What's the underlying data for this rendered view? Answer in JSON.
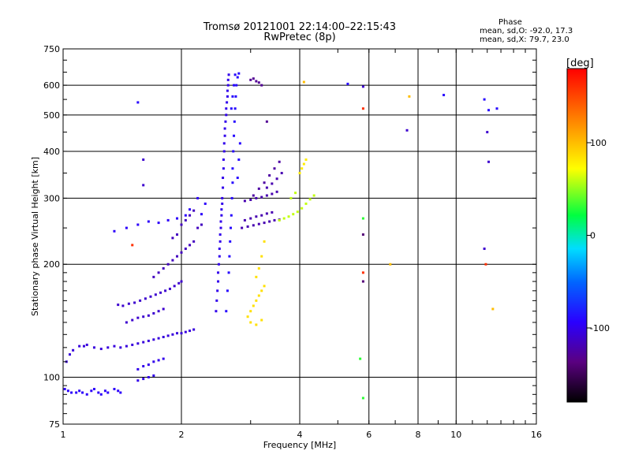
{
  "header": {
    "title": "Tromsø 20121001 22:14:00–22:15:43",
    "subtitle": "RwPretec (8p)"
  },
  "phase_info": {
    "heading": "Phase",
    "line_o": "mean, sd,O: -92.0, 17.3",
    "line_x": "mean, sd,X:  79.7, 23.0"
  },
  "chart_data": {
    "type": "scatter",
    "title": "Tromsø 20121001 22:14:00–22:15:43",
    "subtitle": "RwPretec (8p)",
    "xlabel": "Frequency [MHz]",
    "ylabel": "Stationary phase Virtual Height [km]",
    "x_scale": "log",
    "y_scale": "log",
    "xlim": [
      1,
      16
    ],
    "ylim": [
      75,
      750
    ],
    "x_ticks": [
      1,
      2,
      4,
      6,
      8,
      10,
      16
    ],
    "x_tick_labels": [
      "1",
      "2",
      "4",
      "6",
      "8",
      "10",
      "16"
    ],
    "y_ticks": [
      75,
      100,
      200,
      300,
      400,
      500,
      600,
      750
    ],
    "y_tick_labels": [
      "75",
      "100",
      "200",
      "300",
      "400",
      "500",
      "600",
      "750"
    ],
    "grid": true,
    "colorbar": {
      "label": "[deg]",
      "range": [
        -180,
        180
      ],
      "ticks": [
        100,
        0,
        -100
      ],
      "tick_labels": [
        "100",
        "0",
        "-100"
      ]
    },
    "clusters": [
      {
        "phase": -95,
        "points": [
          [
            1.01,
            93
          ],
          [
            1.03,
            92
          ],
          [
            1.05,
            91
          ],
          [
            1.08,
            91
          ],
          [
            1.1,
            92
          ],
          [
            1.12,
            91
          ],
          [
            1.15,
            90
          ],
          [
            1.18,
            92
          ],
          [
            1.2,
            93
          ],
          [
            1.23,
            91
          ],
          [
            1.25,
            90
          ],
          [
            1.28,
            92
          ],
          [
            1.3,
            91
          ],
          [
            1.35,
            93
          ],
          [
            1.38,
            92
          ],
          [
            1.4,
            91
          ]
        ]
      },
      {
        "phase": -105,
        "points": [
          [
            1.02,
            110
          ],
          [
            1.04,
            115
          ],
          [
            1.06,
            118
          ],
          [
            1.1,
            121
          ],
          [
            1.13,
            121
          ],
          [
            1.15,
            122
          ],
          [
            1.2,
            120
          ],
          [
            1.25,
            119
          ],
          [
            1.3,
            120
          ],
          [
            1.35,
            121
          ],
          [
            1.4,
            120
          ],
          [
            1.45,
            121
          ],
          [
            1.5,
            122
          ],
          [
            1.55,
            123
          ],
          [
            1.6,
            124
          ],
          [
            1.65,
            125
          ],
          [
            1.7,
            126
          ],
          [
            1.75,
            127
          ],
          [
            1.8,
            128
          ],
          [
            1.85,
            129
          ],
          [
            1.9,
            130
          ],
          [
            1.95,
            131
          ],
          [
            2.0,
            131
          ],
          [
            2.05,
            132
          ],
          [
            2.1,
            133
          ],
          [
            2.15,
            134
          ]
        ]
      },
      {
        "phase": -100,
        "points": [
          [
            1.55,
            105
          ],
          [
            1.6,
            107
          ],
          [
            1.65,
            108
          ],
          [
            1.7,
            110
          ],
          [
            1.75,
            111
          ],
          [
            1.8,
            112
          ],
          [
            1.55,
            98
          ],
          [
            1.6,
            99
          ],
          [
            1.65,
            100
          ],
          [
            1.7,
            101
          ]
        ]
      },
      {
        "phase": -110,
        "points": [
          [
            1.38,
            156
          ],
          [
            1.42,
            155
          ],
          [
            1.47,
            157
          ],
          [
            1.52,
            158
          ],
          [
            1.57,
            160
          ],
          [
            1.62,
            162
          ],
          [
            1.67,
            164
          ],
          [
            1.72,
            166
          ],
          [
            1.77,
            168
          ],
          [
            1.82,
            170
          ],
          [
            1.87,
            172
          ],
          [
            1.92,
            175
          ],
          [
            1.97,
            178
          ],
          [
            2.0,
            180
          ],
          [
            1.45,
            140
          ],
          [
            1.5,
            142
          ],
          [
            1.55,
            144
          ],
          [
            1.6,
            145
          ],
          [
            1.65,
            146
          ],
          [
            1.7,
            148
          ],
          [
            1.75,
            150
          ],
          [
            1.8,
            152
          ]
        ]
      },
      {
        "phase": -115,
        "points": [
          [
            1.7,
            185
          ],
          [
            1.75,
            190
          ],
          [
            1.8,
            195
          ],
          [
            1.85,
            200
          ],
          [
            1.9,
            205
          ],
          [
            1.95,
            210
          ],
          [
            2.0,
            215
          ],
          [
            2.05,
            220
          ],
          [
            2.1,
            225
          ],
          [
            2.15,
            230
          ],
          [
            2.0,
            255
          ],
          [
            2.05,
            262
          ],
          [
            2.1,
            270
          ],
          [
            2.15,
            278
          ],
          [
            1.95,
            240
          ],
          [
            1.9,
            235
          ],
          [
            2.2,
            250
          ],
          [
            2.25,
            255
          ]
        ]
      },
      {
        "phase": -95,
        "points": [
          [
            1.35,
            245
          ],
          [
            1.45,
            250
          ],
          [
            1.55,
            255
          ],
          [
            1.65,
            260
          ],
          [
            1.75,
            258
          ],
          [
            1.85,
            262
          ],
          [
            1.95,
            265
          ],
          [
            2.05,
            270
          ],
          [
            2.1,
            280
          ],
          [
            2.2,
            300
          ],
          [
            2.3,
            290
          ],
          [
            2.25,
            272
          ]
        ]
      },
      {
        "phase": -100,
        "points": [
          [
            2.45,
            150
          ],
          [
            2.46,
            160
          ],
          [
            2.47,
            170
          ],
          [
            2.48,
            180
          ],
          [
            2.48,
            190
          ],
          [
            2.49,
            200
          ],
          [
            2.5,
            210
          ],
          [
            2.5,
            220
          ],
          [
            2.51,
            230
          ],
          [
            2.51,
            240
          ],
          [
            2.52,
            250
          ],
          [
            2.52,
            260
          ],
          [
            2.53,
            270
          ],
          [
            2.53,
            280
          ],
          [
            2.54,
            290
          ],
          [
            2.54,
            300
          ],
          [
            2.55,
            320
          ],
          [
            2.55,
            340
          ],
          [
            2.56,
            360
          ],
          [
            2.56,
            380
          ],
          [
            2.57,
            400
          ],
          [
            2.57,
            420
          ],
          [
            2.58,
            440
          ],
          [
            2.58,
            460
          ],
          [
            2.59,
            480
          ],
          [
            2.6,
            500
          ],
          [
            2.6,
            520
          ],
          [
            2.61,
            540
          ],
          [
            2.62,
            560
          ],
          [
            2.62,
            580
          ],
          [
            2.63,
            600
          ],
          [
            2.63,
            620
          ],
          [
            2.64,
            640
          ]
        ]
      },
      {
        "phase": -90,
        "points": [
          [
            2.6,
            150
          ],
          [
            2.62,
            170
          ],
          [
            2.64,
            190
          ],
          [
            2.65,
            210
          ],
          [
            2.66,
            230
          ],
          [
            2.67,
            250
          ],
          [
            2.68,
            270
          ],
          [
            2.69,
            300
          ],
          [
            2.7,
            330
          ],
          [
            2.7,
            360
          ],
          [
            2.71,
            400
          ],
          [
            2.72,
            440
          ],
          [
            2.73,
            480
          ],
          [
            2.74,
            520
          ],
          [
            2.75,
            560
          ],
          [
            2.76,
            600
          ],
          [
            2.78,
            630
          ],
          [
            2.8,
            645
          ],
          [
            2.68,
            520
          ],
          [
            2.7,
            560
          ],
          [
            2.72,
            600
          ],
          [
            2.74,
            640
          ],
          [
            2.82,
            420
          ],
          [
            2.8,
            380
          ],
          [
            2.78,
            340
          ]
        ]
      },
      {
        "phase": -120,
        "points": [
          [
            2.85,
            250
          ],
          [
            2.95,
            252
          ],
          [
            3.05,
            254
          ],
          [
            3.15,
            256
          ],
          [
            3.25,
            258
          ],
          [
            3.35,
            260
          ],
          [
            3.45,
            262
          ],
          [
            3.55,
            263
          ],
          [
            2.9,
            262
          ],
          [
            3.0,
            265
          ],
          [
            3.1,
            268
          ],
          [
            3.2,
            270
          ],
          [
            3.3,
            273
          ],
          [
            3.4,
            275
          ],
          [
            2.9,
            295
          ],
          [
            3.0,
            297
          ],
          [
            3.1,
            300
          ],
          [
            3.2,
            302
          ],
          [
            3.3,
            305
          ],
          [
            3.4,
            308
          ],
          [
            3.5,
            312
          ],
          [
            3.3,
            320
          ],
          [
            3.4,
            328
          ],
          [
            3.5,
            338
          ],
          [
            3.6,
            350
          ]
        ]
      },
      {
        "phase": -125,
        "points": [
          [
            3.05,
            305
          ],
          [
            3.15,
            318
          ],
          [
            3.25,
            330
          ],
          [
            3.35,
            345
          ],
          [
            3.45,
            360
          ],
          [
            3.55,
            375
          ]
        ]
      },
      {
        "phase": -130,
        "points": [
          [
            3.0,
            620
          ],
          [
            3.05,
            625
          ],
          [
            3.1,
            615
          ],
          [
            3.15,
            610
          ],
          [
            3.2,
            600
          ],
          [
            3.3,
            480
          ]
        ]
      },
      {
        "phase": 60,
        "points": [
          [
            3.55,
            262
          ],
          [
            3.65,
            265
          ],
          [
            3.75,
            268
          ],
          [
            3.85,
            272
          ],
          [
            3.95,
            276
          ],
          [
            4.05,
            282
          ],
          [
            4.15,
            290
          ],
          [
            4.25,
            298
          ],
          [
            4.35,
            305
          ],
          [
            3.8,
            300
          ],
          [
            3.9,
            310
          ]
        ]
      },
      {
        "phase": 80,
        "points": [
          [
            4.0,
            350
          ],
          [
            4.05,
            360
          ],
          [
            4.1,
            370
          ],
          [
            4.15,
            380
          ]
        ]
      },
      {
        "phase": 85,
        "points": [
          [
            3.0,
            150
          ],
          [
            3.05,
            155
          ],
          [
            3.1,
            160
          ],
          [
            3.15,
            165
          ],
          [
            3.2,
            170
          ],
          [
            3.25,
            175
          ],
          [
            3.1,
            185
          ],
          [
            3.15,
            195
          ],
          [
            3.2,
            210
          ],
          [
            3.25,
            230
          ],
          [
            2.95,
            145
          ],
          [
            3.0,
            140
          ],
          [
            3.1,
            138
          ],
          [
            3.2,
            142
          ]
        ]
      },
      {
        "phase": -90,
        "points": [
          [
            1.55,
            540
          ],
          [
            5.3,
            605
          ],
          [
            9.3,
            565
          ],
          [
            11.8,
            550
          ],
          [
            12.7,
            520
          ],
          [
            12.1,
            515
          ]
        ]
      },
      {
        "phase": -110,
        "points": [
          [
            1.6,
            380
          ],
          [
            1.6,
            325
          ],
          [
            5.8,
            595
          ],
          [
            7.5,
            455
          ],
          [
            12.0,
            450
          ],
          [
            12.1,
            375
          ],
          [
            11.8,
            220
          ]
        ]
      },
      {
        "phase": 30,
        "points": [
          [
            5.8,
            265
          ],
          [
            5.7,
            112
          ],
          [
            5.8,
            88
          ]
        ]
      },
      {
        "phase": 100,
        "points": [
          [
            4.1,
            612
          ],
          [
            7.6,
            560
          ],
          [
            12.4,
            152
          ],
          [
            6.8,
            200
          ]
        ]
      },
      {
        "phase": 160,
        "points": [
          [
            5.8,
            520
          ],
          [
            5.8,
            190
          ],
          [
            1.5,
            225
          ],
          [
            11.9,
            200
          ]
        ]
      },
      {
        "phase": -140,
        "points": [
          [
            5.8,
            240
          ],
          [
            5.8,
            180
          ]
        ]
      }
    ]
  }
}
